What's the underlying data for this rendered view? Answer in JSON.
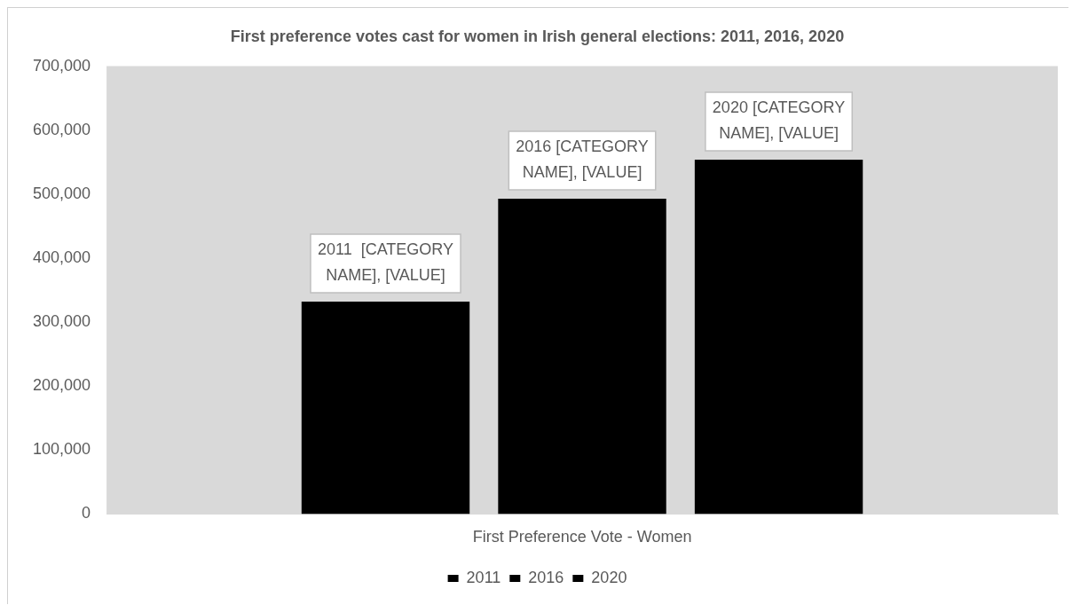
{
  "chart_data": {
    "type": "bar",
    "title": "First preference votes cast for women in Irish general elections: 2011, 2016, 2020",
    "categories": [
      "First Preference Vote - Women"
    ],
    "series": [
      {
        "name": "2011",
        "color": "#000000",
        "values": [
          332000
        ]
      },
      {
        "name": "2016",
        "color": "#000000",
        "values": [
          493000
        ]
      },
      {
        "name": "2020",
        "color": "#000000",
        "values": [
          554000
        ]
      }
    ],
    "annotations": [
      "2011  [CATEGORY NAME], [VALUE]",
      "2016 [CATEGORY NAME], [VALUE]",
      "2020 [CATEGORY NAME], [VALUE]"
    ],
    "ylim": [
      0,
      700000
    ],
    "yticks": [
      0,
      {
        "value": 100000,
        "label": "100,000"
      },
      {
        "value": 200000,
        "label": "200,000"
      },
      {
        "value": 300000,
        "label": "300,000"
      },
      {
        "value": 400000,
        "label": "400,000"
      },
      {
        "value": 500000,
        "label": "500,000"
      },
      {
        "value": 600000,
        "label": "600,000"
      },
      {
        "value": 700000,
        "label": "700,000"
      }
    ],
    "grid": false,
    "legend": "bottom"
  }
}
